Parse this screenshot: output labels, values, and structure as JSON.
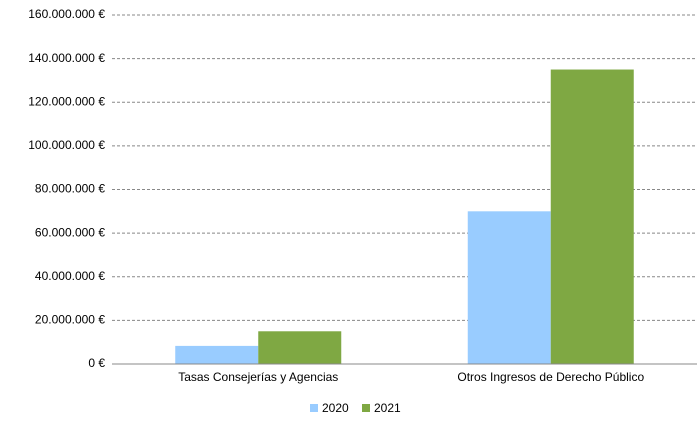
{
  "chart_data": {
    "type": "bar",
    "categories": [
      "Tasas Consejerías y Agencias",
      "Otros Ingresos de Derecho Público"
    ],
    "series": [
      {
        "name": "2020",
        "color": "#99ccff",
        "values": [
          8300000,
          70000000
        ]
      },
      {
        "name": "2021",
        "color": "#7fa843",
        "values": [
          15000000,
          135000000
        ]
      }
    ],
    "ylim": [
      0,
      160000000
    ],
    "yticks": [
      {
        "value": 0,
        "label": "0 €"
      },
      {
        "value": 20000000,
        "label": "20.000.000 €"
      },
      {
        "value": 40000000,
        "label": "40.000.000 €"
      },
      {
        "value": 60000000,
        "label": "60.000.000 €"
      },
      {
        "value": 80000000,
        "label": "80.000.000 €"
      },
      {
        "value": 100000000,
        "label": "100.000.000 €"
      },
      {
        "value": 120000000,
        "label": "120.000.000 €"
      },
      {
        "value": 140000000,
        "label": "140.000.000 €"
      },
      {
        "value": 160000000,
        "label": "160.000.000 €"
      }
    ],
    "grid": true,
    "legend": "bottom"
  }
}
